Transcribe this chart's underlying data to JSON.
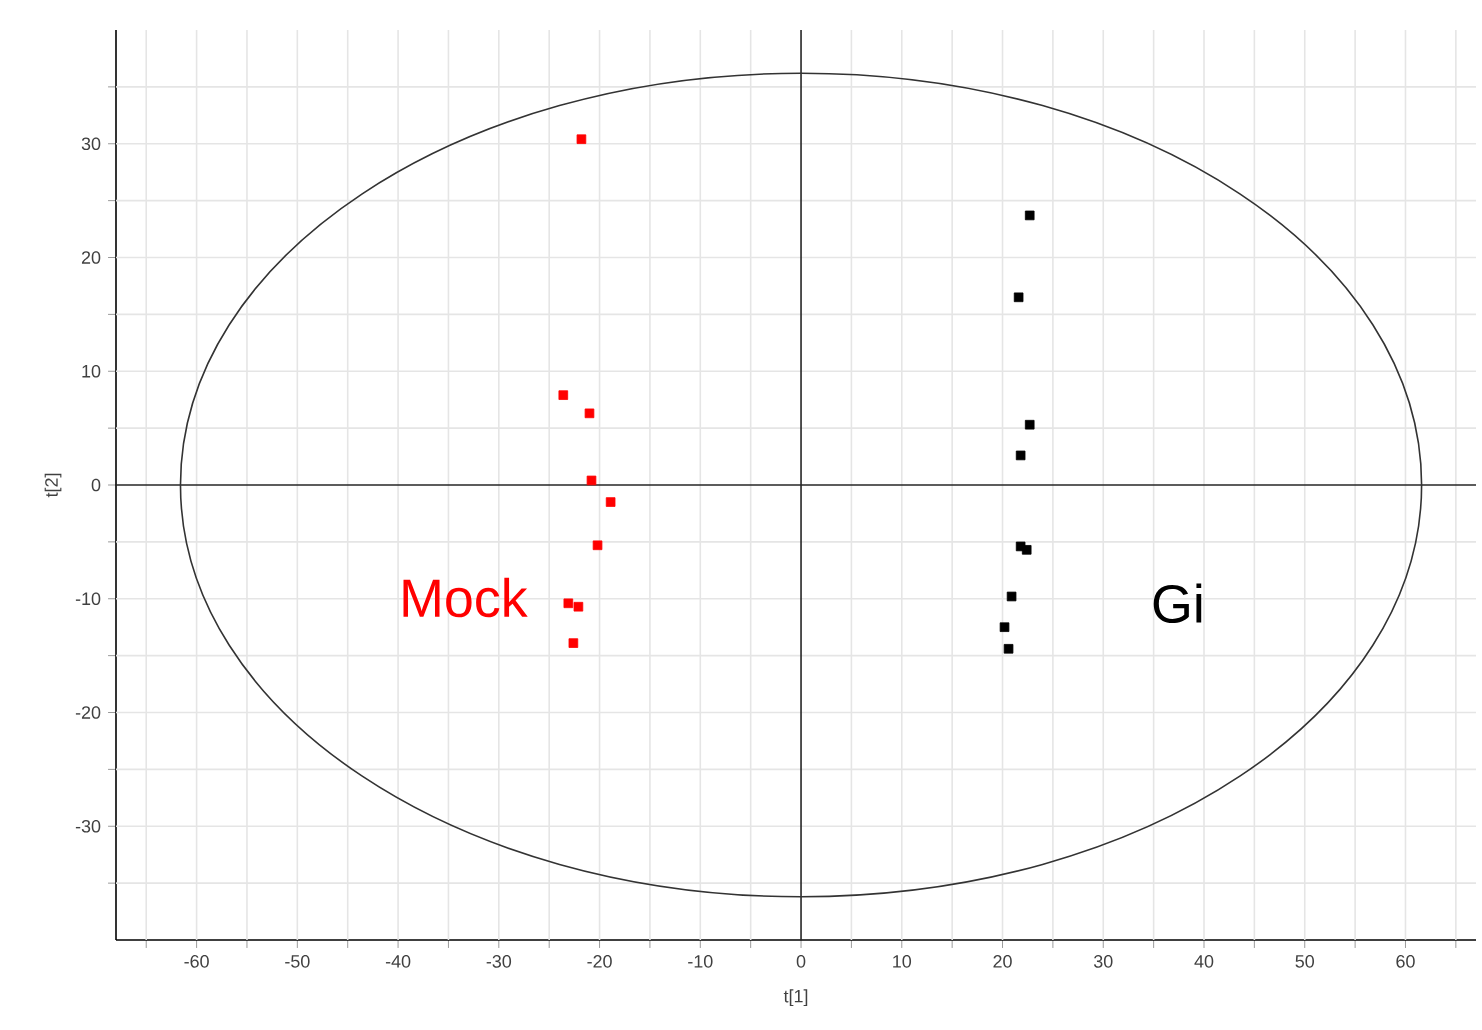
{
  "chart_data": {
    "type": "scatter",
    "xlabel": "t[1]",
    "ylabel": "t[2]",
    "marker": "square",
    "grid": true,
    "xlim": [
      -68,
      67
    ],
    "ylim": [
      -40,
      40
    ],
    "xticks": [
      {
        "value": -65,
        "label": null
      },
      -60,
      {
        "value": -55,
        "label": null
      },
      -50,
      {
        "value": -45,
        "label": null
      },
      -40,
      {
        "value": -35,
        "label": null
      },
      -30,
      {
        "value": -25,
        "label": null
      },
      -20,
      {
        "value": -15,
        "label": null
      },
      -10,
      {
        "value": -5,
        "label": null
      },
      0,
      {
        "value": 5,
        "label": null
      },
      10,
      {
        "value": 15,
        "label": null
      },
      20,
      {
        "value": 25,
        "label": null
      },
      30,
      {
        "value": 35,
        "label": null
      },
      40,
      {
        "value": 45,
        "label": null
      },
      50,
      {
        "value": 55,
        "label": null
      },
      60,
      {
        "value": 65,
        "label": null
      }
    ],
    "yticks": [
      {
        "value": -35,
        "label": null
      },
      -30,
      {
        "value": -25,
        "label": null
      },
      -20,
      {
        "value": -15,
        "label": null
      },
      -10,
      {
        "value": -5,
        "label": null
      },
      0,
      {
        "value": 5,
        "label": null
      },
      10,
      {
        "value": 15,
        "label": null
      },
      20,
      {
        "value": 25,
        "label": null
      },
      30,
      {
        "value": 35,
        "label": null
      }
    ],
    "series": [
      {
        "name": "Mock",
        "color": "#ff0000",
        "x": [
          -21.8,
          -23.6,
          -21.0,
          -20.8,
          -18.9,
          -20.2,
          -23.1,
          -22.1,
          -22.6
        ],
        "values": [
          30.4,
          7.9,
          6.3,
          0.4,
          -1.5,
          -5.3,
          -10.4,
          -10.7,
          -13.9
        ]
      },
      {
        "name": "Gi",
        "color": "#000000",
        "x": [
          22.7,
          21.6,
          22.7,
          21.8,
          21.8,
          22.4,
          20.9,
          20.2,
          20.6
        ],
        "values": [
          23.7,
          16.5,
          5.3,
          2.6,
          -5.4,
          -5.7,
          -9.8,
          -12.5,
          -14.4
        ]
      }
    ]
  }
}
